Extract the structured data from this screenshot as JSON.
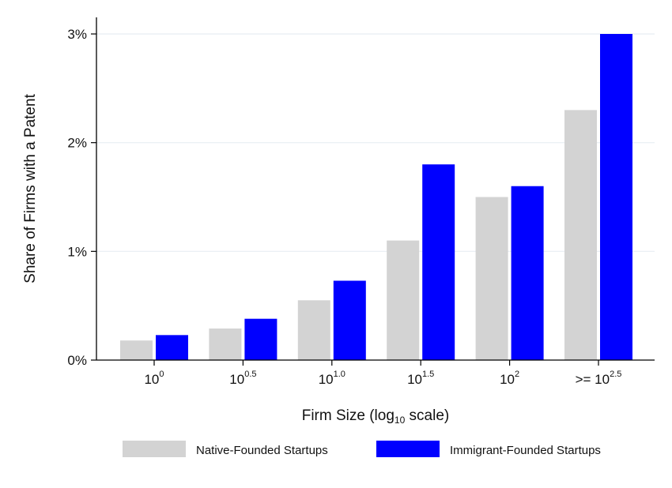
{
  "colors": {
    "native": "#d3d3d3",
    "immigrant": "#0000ff",
    "grid": "#e8eef2",
    "axis": "#000000"
  },
  "chart_data": {
    "type": "bar",
    "xlabel_parts": {
      "pre": "Firm Size (log",
      "sub": "10",
      "post": " scale)"
    },
    "ylabel": "Share of Firms with a Patent",
    "categories": [
      {
        "base": "10",
        "exp": "0"
      },
      {
        "base": "10",
        "exp": "0.5"
      },
      {
        "base": "10",
        "exp": "1.0"
      },
      {
        "base": "10",
        "exp": "1.5"
      },
      {
        "base": "10",
        "exp": "2"
      },
      {
        "base": ">= 10",
        "exp": "2.5"
      }
    ],
    "series": [
      {
        "name": "Native-Founded Startups",
        "values": [
          0.18,
          0.29,
          0.55,
          1.1,
          1.5,
          2.3
        ]
      },
      {
        "name": "Immigrant-Founded Startups",
        "values": [
          0.23,
          0.38,
          0.73,
          1.8,
          1.6,
          3.0
        ]
      }
    ],
    "yticks": [
      {
        "value": 0,
        "label": "0%"
      },
      {
        "value": 1,
        "label": "1%"
      },
      {
        "value": 2,
        "label": "2%"
      },
      {
        "value": 3,
        "label": "3%"
      }
    ],
    "ylim": [
      0,
      3
    ],
    "grid": true,
    "legend_position": "bottom"
  }
}
